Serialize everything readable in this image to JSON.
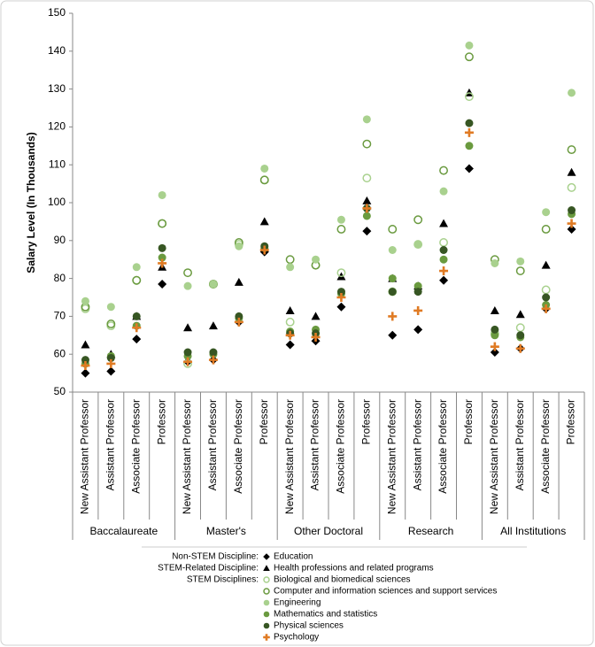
{
  "chart_data": {
    "type": "dot",
    "y_label": "Salary Level (In Thousands)",
    "categories": [
      "New Assistant Professor",
      "Assistant Professor",
      "Associate Professor",
      "Professor",
      "New Assistant Professor",
      "Assistant Professor",
      "Associate Professor",
      "Professor",
      "New Assistant Professor",
      "Assistant Professor",
      "Associate Professor",
      "Professor",
      "New Assistant Professor",
      "Assistant Professor",
      "Associate Professor",
      "Professor",
      "New Assistant Professor",
      "Assistant Professor",
      "Associate Professor",
      "Professor"
    ],
    "groups": [
      "Baccalaureate",
      "Master's",
      "Other Doctoral",
      "Research",
      "All Institutions"
    ],
    "ylim": [
      50,
      150
    ],
    "yticks": [
      50,
      60,
      70,
      80,
      90,
      100,
      110,
      120,
      130,
      140,
      150
    ],
    "series": [
      {
        "name": "Education",
        "legend_heading": "Non-STEM Discipline:",
        "marker": "diamond",
        "color": "#000000",
        "values": [
          55,
          55.5,
          64,
          78.5,
          58,
          58.5,
          68.5,
          87,
          62.5,
          63.5,
          72.5,
          92.5,
          65,
          66.5,
          79.5,
          109,
          60.5,
          61.5,
          72,
          93
        ]
      },
      {
        "name": "Health professions and related programs",
        "legend_heading": "STEM-Related Discipline:",
        "marker": "triangle",
        "color": "#000000",
        "values": [
          62.5,
          60,
          70,
          83,
          67,
          67.5,
          79,
          95,
          71.5,
          70,
          80.5,
          100.5,
          80,
          78,
          94.5,
          129,
          71.5,
          70.5,
          83.5,
          108
        ]
      },
      {
        "name": "Biological and biomedical sciences",
        "legend_heading": "STEM Disciplines:",
        "marker": "open-circle",
        "color": "#a9d18e",
        "values": [
          72,
          67.5,
          79.5,
          94.5,
          57.5,
          78.5,
          89,
          106,
          68.5,
          83.5,
          81.5,
          106.5,
          76.5,
          89,
          89.5,
          128,
          65.5,
          67,
          77,
          104
        ]
      },
      {
        "name": "Computer and information sciences and support services",
        "marker": "open-circle",
        "color": "#6a9a3f",
        "values": [
          72.5,
          68,
          79.5,
          94.5,
          81.5,
          78.5,
          89.5,
          106,
          85,
          83.5,
          93,
          115.5,
          93,
          95.5,
          108.5,
          138.5,
          85,
          82,
          93,
          114
        ]
      },
      {
        "name": "Engineering",
        "marker": "circle",
        "color": "#a9d18e",
        "values": [
          74,
          72.5,
          83,
          102,
          78,
          78.5,
          88.5,
          109,
          83,
          85,
          95.5,
          122,
          87.5,
          89,
          103,
          141.5,
          84,
          84.5,
          97.5,
          129
        ]
      },
      {
        "name": "Mathematics and statistics",
        "marker": "circle",
        "color": "#6a9a3f",
        "values": [
          57.5,
          59.5,
          67.5,
          85.5,
          59.5,
          60,
          69.5,
          88,
          66,
          66.5,
          76,
          96.5,
          80,
          78,
          85,
          115,
          65,
          64.5,
          73,
          97
        ]
      },
      {
        "name": "Physical sciences",
        "marker": "circle",
        "color": "#375623",
        "values": [
          58.5,
          59,
          70,
          88,
          60.5,
          60.5,
          70,
          88.5,
          65.5,
          65.5,
          76.5,
          98.5,
          76.5,
          76.5,
          87.5,
          121,
          66.5,
          65,
          75,
          98
        ]
      },
      {
        "name": "Psychology",
        "marker": "plus",
        "color": "#e07b24",
        "values": [
          57,
          57.5,
          67,
          84,
          58,
          58.5,
          68.5,
          87.5,
          65,
          64.5,
          75,
          98.5,
          70,
          71.5,
          82,
          118.5,
          62,
          61.5,
          72,
          94.5
        ]
      }
    ]
  }
}
